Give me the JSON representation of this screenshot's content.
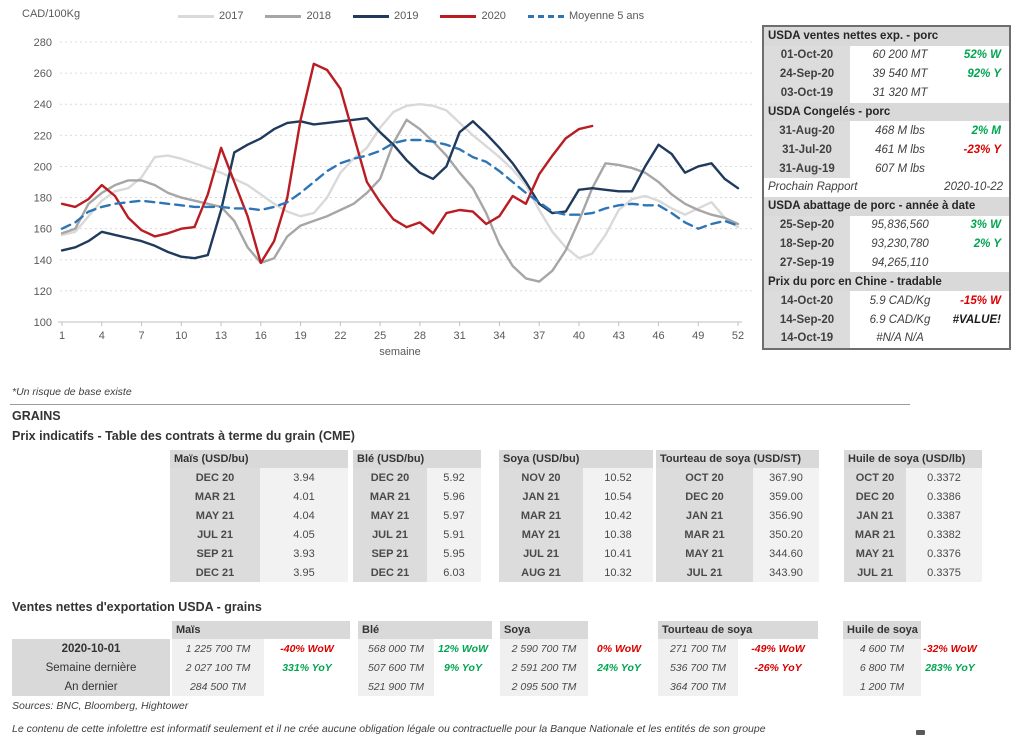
{
  "chart": {
    "y_unit": "CAD/100Kg"
  },
  "chart_data": {
    "type": "line",
    "title": "",
    "xlabel": "semaine",
    "ylabel": "CAD/100Kg",
    "ylim": [
      100,
      280
    ],
    "y_ticks": [
      100,
      120,
      140,
      160,
      180,
      200,
      220,
      240,
      260,
      280
    ],
    "x_ticks": [
      1,
      4,
      7,
      10,
      13,
      16,
      19,
      22,
      25,
      28,
      31,
      34,
      37,
      40,
      43,
      46,
      49,
      52
    ],
    "x_range": [
      1,
      52
    ],
    "grid": "dashed-horizontal",
    "legend_position": "top-center",
    "series": [
      {
        "name": "2017",
        "color": "#d9d9d9",
        "style": "solid",
        "values": [
          156,
          158,
          168,
          178,
          184,
          186,
          193,
          206,
          207,
          205,
          202,
          199,
          196,
          192,
          188,
          182,
          176,
          171,
          168,
          170,
          180,
          196,
          205,
          212,
          225,
          235,
          239,
          240,
          239,
          236,
          228,
          220,
          213,
          206,
          198,
          188,
          172,
          158,
          148,
          141,
          144,
          156,
          172,
          179,
          181,
          178,
          173,
          169,
          173,
          177,
          167,
          161
        ]
      },
      {
        "name": "2018",
        "color": "#a6a6a6",
        "style": "solid",
        "values": [
          157,
          160,
          176,
          183,
          188,
          191,
          191,
          188,
          183,
          180,
          178,
          176,
          174,
          165,
          148,
          138,
          141,
          155,
          162,
          165,
          168,
          172,
          176,
          183,
          192,
          215,
          230,
          224,
          216,
          207,
          196,
          186,
          170,
          150,
          136,
          128,
          126,
          133,
          146,
          165,
          186,
          202,
          201,
          199,
          196,
          190,
          182,
          176,
          172,
          169,
          167,
          163
        ]
      },
      {
        "name": "2019",
        "color": "#1f3a5c",
        "style": "solid",
        "values": [
          146,
          148,
          152,
          158,
          156,
          154,
          152,
          149,
          145,
          142,
          141,
          143,
          172,
          209,
          214,
          218,
          224,
          228,
          229,
          227,
          228,
          229,
          230,
          231,
          222,
          214,
          204,
          196,
          192,
          200,
          222,
          229,
          221,
          212,
          202,
          190,
          176,
          170,
          171,
          185,
          186,
          185,
          184,
          184,
          200,
          214,
          208,
          196,
          200,
          202,
          192,
          186
        ]
      },
      {
        "name": "2020",
        "color": "#b91c22",
        "style": "solid",
        "values": [
          176,
          174,
          179,
          188,
          181,
          167,
          159,
          155,
          157,
          160,
          161,
          182,
          212,
          190,
          168,
          138,
          152,
          180,
          230,
          266,
          262,
          250,
          220,
          190,
          177,
          166,
          161,
          164,
          157,
          170,
          172,
          171,
          163,
          168,
          181,
          176,
          195,
          207,
          218,
          224,
          226
        ]
      },
      {
        "name": "Moyenne 5 ans",
        "color": "#2e75b6",
        "style": "dashed",
        "values": [
          160,
          164,
          171,
          174,
          176,
          177,
          178,
          177,
          176,
          175,
          174,
          174,
          174,
          173,
          173,
          172,
          174,
          177,
          183,
          190,
          197,
          202,
          205,
          207,
          210,
          215,
          217,
          217,
          216,
          214,
          211,
          206,
          203,
          197,
          190,
          183,
          177,
          171,
          169,
          169,
          170,
          173,
          175,
          176,
          175,
          175,
          170,
          164,
          160,
          163,
          165,
          162
        ]
      }
    ]
  },
  "porc_panel": {
    "rows": [
      {
        "type": "header",
        "label": "USDA ventes nettes exp. - porc"
      },
      {
        "type": "data",
        "date": "01-Oct-20",
        "value": "60 200  MT",
        "pct": "52% W",
        "pct_color": "green"
      },
      {
        "type": "data",
        "date": "24-Sep-20",
        "value": "39 540  MT",
        "pct": "92% Y",
        "pct_color": "green"
      },
      {
        "type": "data",
        "date": "03-Oct-19",
        "value": "31 320  MT",
        "pct": "",
        "pct_color": ""
      },
      {
        "type": "header",
        "label": "USDA Congelés - porc"
      },
      {
        "type": "data",
        "date": "31-Aug-20",
        "value": "468 M lbs",
        "pct": "2% M",
        "pct_color": "green"
      },
      {
        "type": "data",
        "date": "31-Jul-20",
        "value": "461 M lbs",
        "pct": "-23% Y",
        "pct_color": "red"
      },
      {
        "type": "data",
        "date": "31-Aug-19",
        "value": "607 M lbs",
        "pct": "",
        "pct_color": ""
      },
      {
        "type": "report",
        "label": "Prochain Rapport",
        "value": "2020-10-22"
      },
      {
        "type": "header",
        "label": "USDA abattage de porc - année à date"
      },
      {
        "type": "data",
        "date": "25-Sep-20",
        "value": "95,836,560",
        "pct": "3% W",
        "pct_color": "green"
      },
      {
        "type": "data",
        "date": "18-Sep-20",
        "value": "93,230,780",
        "pct": "2% Y",
        "pct_color": "green"
      },
      {
        "type": "data",
        "date": "27-Sep-19",
        "value": "94,265,110",
        "pct": "",
        "pct_color": ""
      },
      {
        "type": "header",
        "label": "Prix du porc en Chine - tradable"
      },
      {
        "type": "data",
        "date": "14-Oct-20",
        "value": "5.9 CAD/Kg",
        "pct": "-15% W",
        "pct_color": "red"
      },
      {
        "type": "data",
        "date": "14-Sep-20",
        "value": "6.9 CAD/Kg",
        "pct": "#VALUE!",
        "pct_color": "black"
      },
      {
        "type": "data",
        "date": "14-Oct-19",
        "value": "#N/A N/A",
        "pct": "",
        "pct_color": ""
      }
    ]
  },
  "footnote": "*Un risque de base existe",
  "grains_section_title": "GRAINS",
  "futures_title": "Prix indicatifs - Table des contrats à terme du grain (CME)",
  "grain_futures": {
    "groups": [
      {
        "header": "Maïs (USD/bu)",
        "rows": [
          [
            "DEC 20",
            "3.94"
          ],
          [
            "MAR 21",
            "4.01"
          ],
          [
            "MAY 21",
            "4.04"
          ],
          [
            "JUL 21",
            "4.05"
          ],
          [
            "SEP 21",
            "3.93"
          ],
          [
            "DEC 21",
            "3.95"
          ]
        ]
      },
      {
        "header": "Blé (USD/bu)",
        "rows": [
          [
            "DEC 20",
            "5.92"
          ],
          [
            "MAR 21",
            "5.96"
          ],
          [
            "MAY 21",
            "5.97"
          ],
          [
            "JUL 21",
            "5.91"
          ],
          [
            "SEP 21",
            "5.95"
          ],
          [
            "DEC 21",
            "6.03"
          ]
        ]
      },
      {
        "header": "Soya (USD/bu)",
        "rows": [
          [
            "NOV 20",
            "10.52"
          ],
          [
            "JAN 21",
            "10.54"
          ],
          [
            "MAR 21",
            "10.42"
          ],
          [
            "MAY 21",
            "10.38"
          ],
          [
            "JUL 21",
            "10.41"
          ],
          [
            "AUG 21",
            "10.32"
          ]
        ]
      },
      {
        "header": "Tourteau de soya (USD/ST)",
        "rows": [
          [
            "OCT 20",
            "367.90"
          ],
          [
            "DEC 20",
            "359.00"
          ],
          [
            "JAN 21",
            "356.90"
          ],
          [
            "MAR 21",
            "350.20"
          ],
          [
            "MAY 21",
            "344.60"
          ],
          [
            "JUL 21",
            "343.90"
          ]
        ]
      },
      {
        "header": "Huile de soya (USD/lb)",
        "rows": [
          [
            "OCT 20",
            "0.3372"
          ],
          [
            "DEC 20",
            "0.3386"
          ],
          [
            "JAN 21",
            "0.3387"
          ],
          [
            "MAR 21",
            "0.3382"
          ],
          [
            "MAY 21",
            "0.3376"
          ],
          [
            "JUL 21",
            "0.3375"
          ]
        ]
      }
    ]
  },
  "export_title": "Ventes nettes d'exportation USDA - grains",
  "export_sales": {
    "row_labels": [
      "2020-10-01",
      "Semaine dernière",
      "An dernier"
    ],
    "groups": [
      {
        "header": "Maïs",
        "header_span": "full",
        "rows": [
          {
            "value": "1 225 700 TM",
            "pct": "-40% WoW",
            "pct_color": "red"
          },
          {
            "value": "2 027 100 TM",
            "pct": "331% YoY",
            "pct_color": "green"
          },
          {
            "value": "284 500 TM",
            "pct": "",
            "pct_color": ""
          }
        ]
      },
      {
        "header": "Blé",
        "header_span": "full",
        "rows": [
          {
            "value": "568 000 TM",
            "pct": "12% WoW",
            "pct_color": "green"
          },
          {
            "value": "507 600 TM",
            "pct": "9% YoY",
            "pct_color": "green"
          },
          {
            "value": "521 900 TM",
            "pct": "",
            "pct_color": ""
          }
        ]
      },
      {
        "header": "Soya",
        "header_span": "value",
        "rows": [
          {
            "value": "2 590 700 TM",
            "pct": "0% WoW",
            "pct_color": "red"
          },
          {
            "value": "2 591 200 TM",
            "pct": "24% YoY",
            "pct_color": "green"
          },
          {
            "value": "2 095 500 TM",
            "pct": "",
            "pct_color": ""
          }
        ]
      },
      {
        "header": "Tourteau de soya",
        "header_span": "full",
        "rows": [
          {
            "value": "271 700 TM",
            "pct": "-49% WoW",
            "pct_color": "red"
          },
          {
            "value": "536 700 TM",
            "pct": "-26% YoY",
            "pct_color": "red"
          },
          {
            "value": "364 700 TM",
            "pct": "",
            "pct_color": ""
          }
        ]
      },
      {
        "header": "Huile de soya",
        "header_span": "value",
        "rows": [
          {
            "value": "4 600 TM",
            "pct": "-32% WoW",
            "pct_color": "red"
          },
          {
            "value": "6 800 TM",
            "pct": "283% YoY",
            "pct_color": "green"
          },
          {
            "value": "1 200 TM",
            "pct": "",
            "pct_color": ""
          }
        ]
      }
    ]
  },
  "footer": {
    "sources": "Sources: BNC, Bloomberg, Hightower",
    "disclaimer": "Le contenu de cette infolettre est informatif seulement et il ne crée aucune obligation légale ou contractuelle pour la Banque Nationale et les entités de son groupe"
  },
  "colors": {
    "positive": "#00a550",
    "negative": "#d90000",
    "header_bg": "#d9d9d9",
    "cell_bg": "#f2f2f2"
  }
}
